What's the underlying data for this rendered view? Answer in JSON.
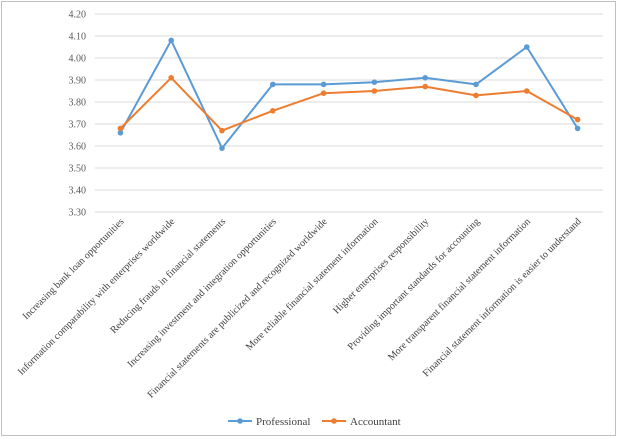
{
  "chart_data": {
    "type": "line",
    "title": "",
    "xlabel": "",
    "ylabel": "",
    "ylim": [
      3.3,
      4.2
    ],
    "yticks": [
      "3.30",
      "3.40",
      "3.50",
      "3.60",
      "3.70",
      "3.80",
      "3.90",
      "4.00",
      "4.10",
      "4.20"
    ],
    "grid": true,
    "legend": "bottom",
    "categories": [
      "Increasing bank loan opportunities",
      "Information comparability with enterprises worldwide",
      "Reducing frauds in financial statements",
      "Increasing investment and integration opportunities",
      "Financial statements are publicized and recognized worldwide",
      "More reliable financial statement information",
      "Higher enterprises responsibility",
      "Providing important standards for accounting",
      "More transparent financial statement information",
      "Financial statement information is easier to understand"
    ],
    "series": [
      {
        "name": "Professional",
        "color": "#5b9bd5",
        "values": [
          3.66,
          4.08,
          3.59,
          3.88,
          3.88,
          3.89,
          3.91,
          3.88,
          4.05,
          3.68
        ]
      },
      {
        "name": "Accountant",
        "color": "#ed7d31",
        "values": [
          3.68,
          3.91,
          3.67,
          3.76,
          3.84,
          3.85,
          3.87,
          3.83,
          3.85,
          3.72
        ]
      }
    ]
  }
}
